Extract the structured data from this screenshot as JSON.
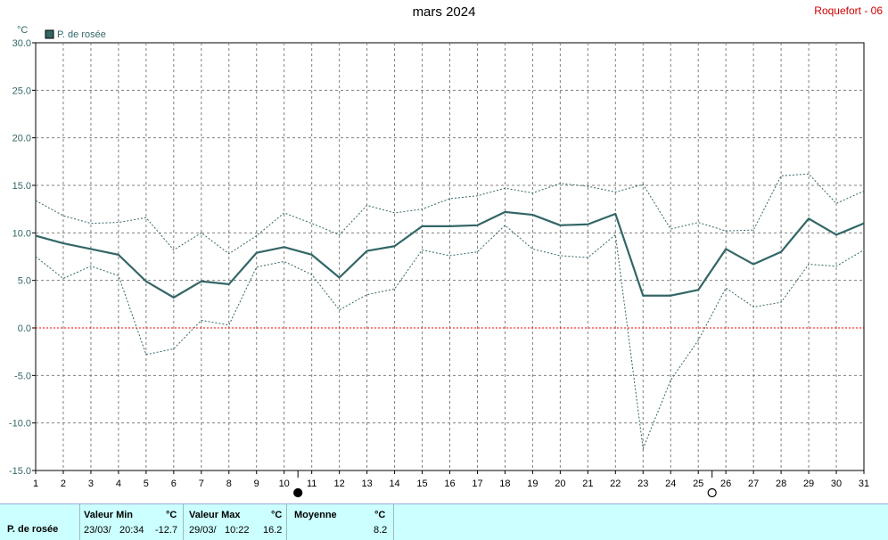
{
  "header": {
    "title": "mars 2024",
    "station": "Roquefort - 06"
  },
  "colors": {
    "series": "#336666",
    "envelope": "#336666",
    "zero_line": "#ff0000",
    "grid": "#808080",
    "stats_bg": "#ccffff"
  },
  "moon_icons": [
    {
      "name": "new-moon-icon",
      "day": 10.5
    },
    {
      "name": "full-moon-icon",
      "day": 25.5
    }
  ],
  "stats": {
    "row_label": "P. de rosée",
    "min": {
      "header": "Valeur Min",
      "unit": "°C",
      "date": "23/03/",
      "time": "20:34",
      "value": "-12.7"
    },
    "max": {
      "header": "Valeur Max",
      "unit": "°C",
      "date": "29/03/",
      "time": "10:22",
      "value": "16.2"
    },
    "mean": {
      "header": "Moyenne",
      "unit": "°C",
      "value": "8.2"
    }
  },
  "chart_data": {
    "type": "line",
    "title": "mars 2024",
    "ylabel": "°C",
    "ylim": [
      -15,
      30
    ],
    "yticks": [
      "30.0",
      "25.0",
      "20.0",
      "15.0",
      "10.0",
      "5.0",
      "0.0",
      "-5.0",
      "-10.0",
      "-15.0"
    ],
    "ytick_values": [
      30,
      25,
      20,
      15,
      10,
      5,
      0,
      -5,
      -10,
      -15
    ],
    "x": [
      1,
      2,
      3,
      4,
      5,
      6,
      7,
      8,
      9,
      10,
      11,
      12,
      13,
      14,
      15,
      16,
      17,
      18,
      19,
      20,
      21,
      22,
      23,
      24,
      25,
      26,
      27,
      28,
      29,
      30,
      31
    ],
    "xticks": [
      "1",
      "2",
      "3",
      "4",
      "5",
      "6",
      "7",
      "8",
      "9",
      "10",
      "11",
      "12",
      "13",
      "14",
      "15",
      "16",
      "17",
      "18",
      "19",
      "20",
      "21",
      "22",
      "23",
      "24",
      "25",
      "26",
      "27",
      "28",
      "29",
      "30",
      "31"
    ],
    "grid": true,
    "legend": "top-left",
    "series": [
      {
        "name": "P. de rosée",
        "role": "mean",
        "values": [
          9.7,
          8.9,
          8.3,
          7.7,
          4.9,
          3.2,
          4.9,
          4.6,
          7.9,
          8.5,
          7.7,
          5.3,
          8.1,
          8.6,
          10.7,
          10.7,
          10.8,
          12.2,
          11.9,
          10.8,
          10.9,
          12.0,
          3.4,
          3.4,
          4.0,
          8.3,
          6.7,
          8.0,
          11.5,
          9.8,
          11.0
        ]
      },
      {
        "role": "max",
        "values": [
          13.4,
          11.8,
          11.0,
          11.1,
          11.6,
          8.2,
          10.0,
          7.8,
          9.7,
          12.1,
          11.0,
          9.8,
          12.9,
          12.1,
          12.5,
          13.6,
          13.9,
          14.7,
          14.2,
          15.2,
          14.9,
          14.3,
          15.1,
          10.4,
          11.1,
          10.2,
          10.3,
          16.0,
          16.2,
          13.1,
          14.4
        ]
      },
      {
        "role": "min",
        "values": [
          7.5,
          5.2,
          6.5,
          5.5,
          -2.8,
          -2.2,
          0.8,
          0.3,
          6.4,
          7.0,
          5.6,
          1.9,
          3.5,
          4.1,
          8.2,
          7.6,
          8.0,
          10.8,
          8.3,
          7.6,
          7.4,
          9.8,
          -12.7,
          -5.5,
          -1.3,
          4.2,
          2.2,
          2.7,
          6.7,
          6.5,
          8.2
        ]
      }
    ]
  }
}
